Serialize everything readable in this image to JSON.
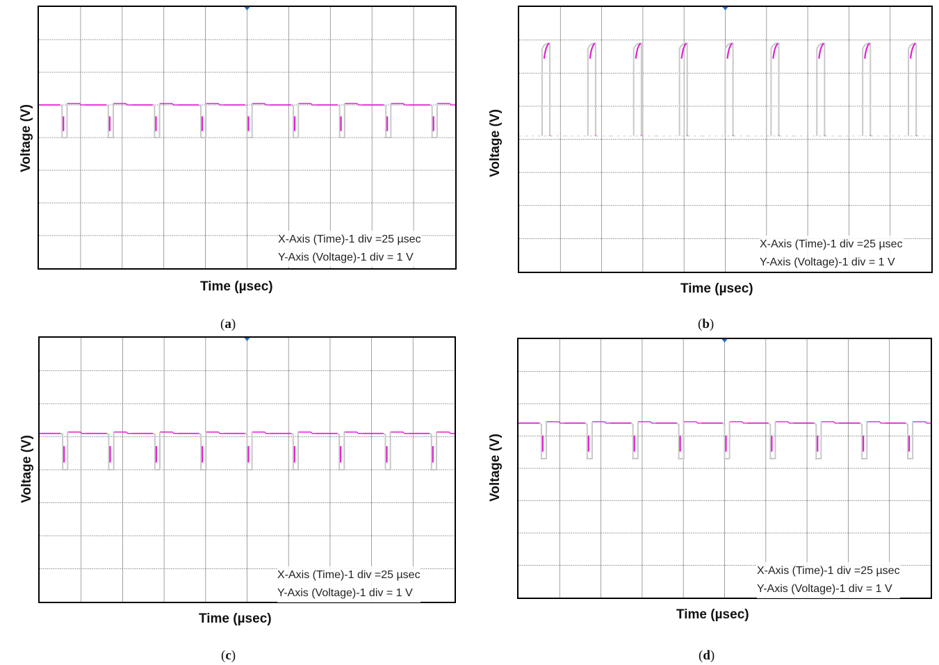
{
  "panels": [
    {
      "id": "a",
      "caption_open": "(",
      "caption_letter": "a",
      "caption_close": ")"
    },
    {
      "id": "b",
      "caption_open": "(",
      "caption_letter": "b",
      "caption_close": ")"
    },
    {
      "id": "c",
      "caption_open": "(",
      "caption_letter": "c",
      "caption_close": ")"
    },
    {
      "id": "d",
      "caption_open": "(",
      "caption_letter": "d",
      "caption_close": ")"
    }
  ],
  "labels": {
    "ylabel": "Voltage (V)",
    "xlabel": "Time (µsec)",
    "annot_x": "X-Axis (Time)-1 div =25 µsec",
    "annot_y": "Y-Axis (Voltage)-1 div = 1 V"
  },
  "colors": {
    "trace_primary": "#e020d0",
    "trace_secondary": "#c8c8c8",
    "grid": "#555555",
    "trigger_marker": "#1e6fd0"
  },
  "chart_data": [
    {
      "panel": "a",
      "type": "line",
      "grid_divisions": {
        "x": 10,
        "y": 8
      },
      "x_per_div": "25 µsec",
      "y_per_div": "1 V",
      "waveform": "negative pulse train",
      "high_div": 5.0,
      "low_div": 4.0,
      "pulse_count": 9,
      "pulse_width_div": 0.12
    },
    {
      "panel": "b",
      "type": "line",
      "grid_divisions": {
        "x": 10,
        "y": 8
      },
      "x_per_div": "25 µsec",
      "y_per_div": "1 V",
      "waveform": "positive pulse train",
      "high_div": 6.9,
      "low_div": 4.1,
      "pulse_count": 9,
      "pulse_width_div": 0.12
    },
    {
      "panel": "c",
      "type": "line",
      "grid_divisions": {
        "x": 10,
        "y": 8
      },
      "x_per_div": "25 µsec",
      "y_per_div": "1 V",
      "waveform": "negative pulse train",
      "high_div": 5.1,
      "low_div": 4.0,
      "pulse_count": 9,
      "pulse_width_div": 0.12
    },
    {
      "panel": "d",
      "type": "line",
      "grid_divisions": {
        "x": 10,
        "y": 8
      },
      "x_per_div": "25 µsec",
      "y_per_div": "1 V",
      "waveform": "negative pulse train",
      "high_div": 5.4,
      "low_div": 4.3,
      "pulse_count": 9,
      "pulse_width_div": 0.12
    }
  ]
}
